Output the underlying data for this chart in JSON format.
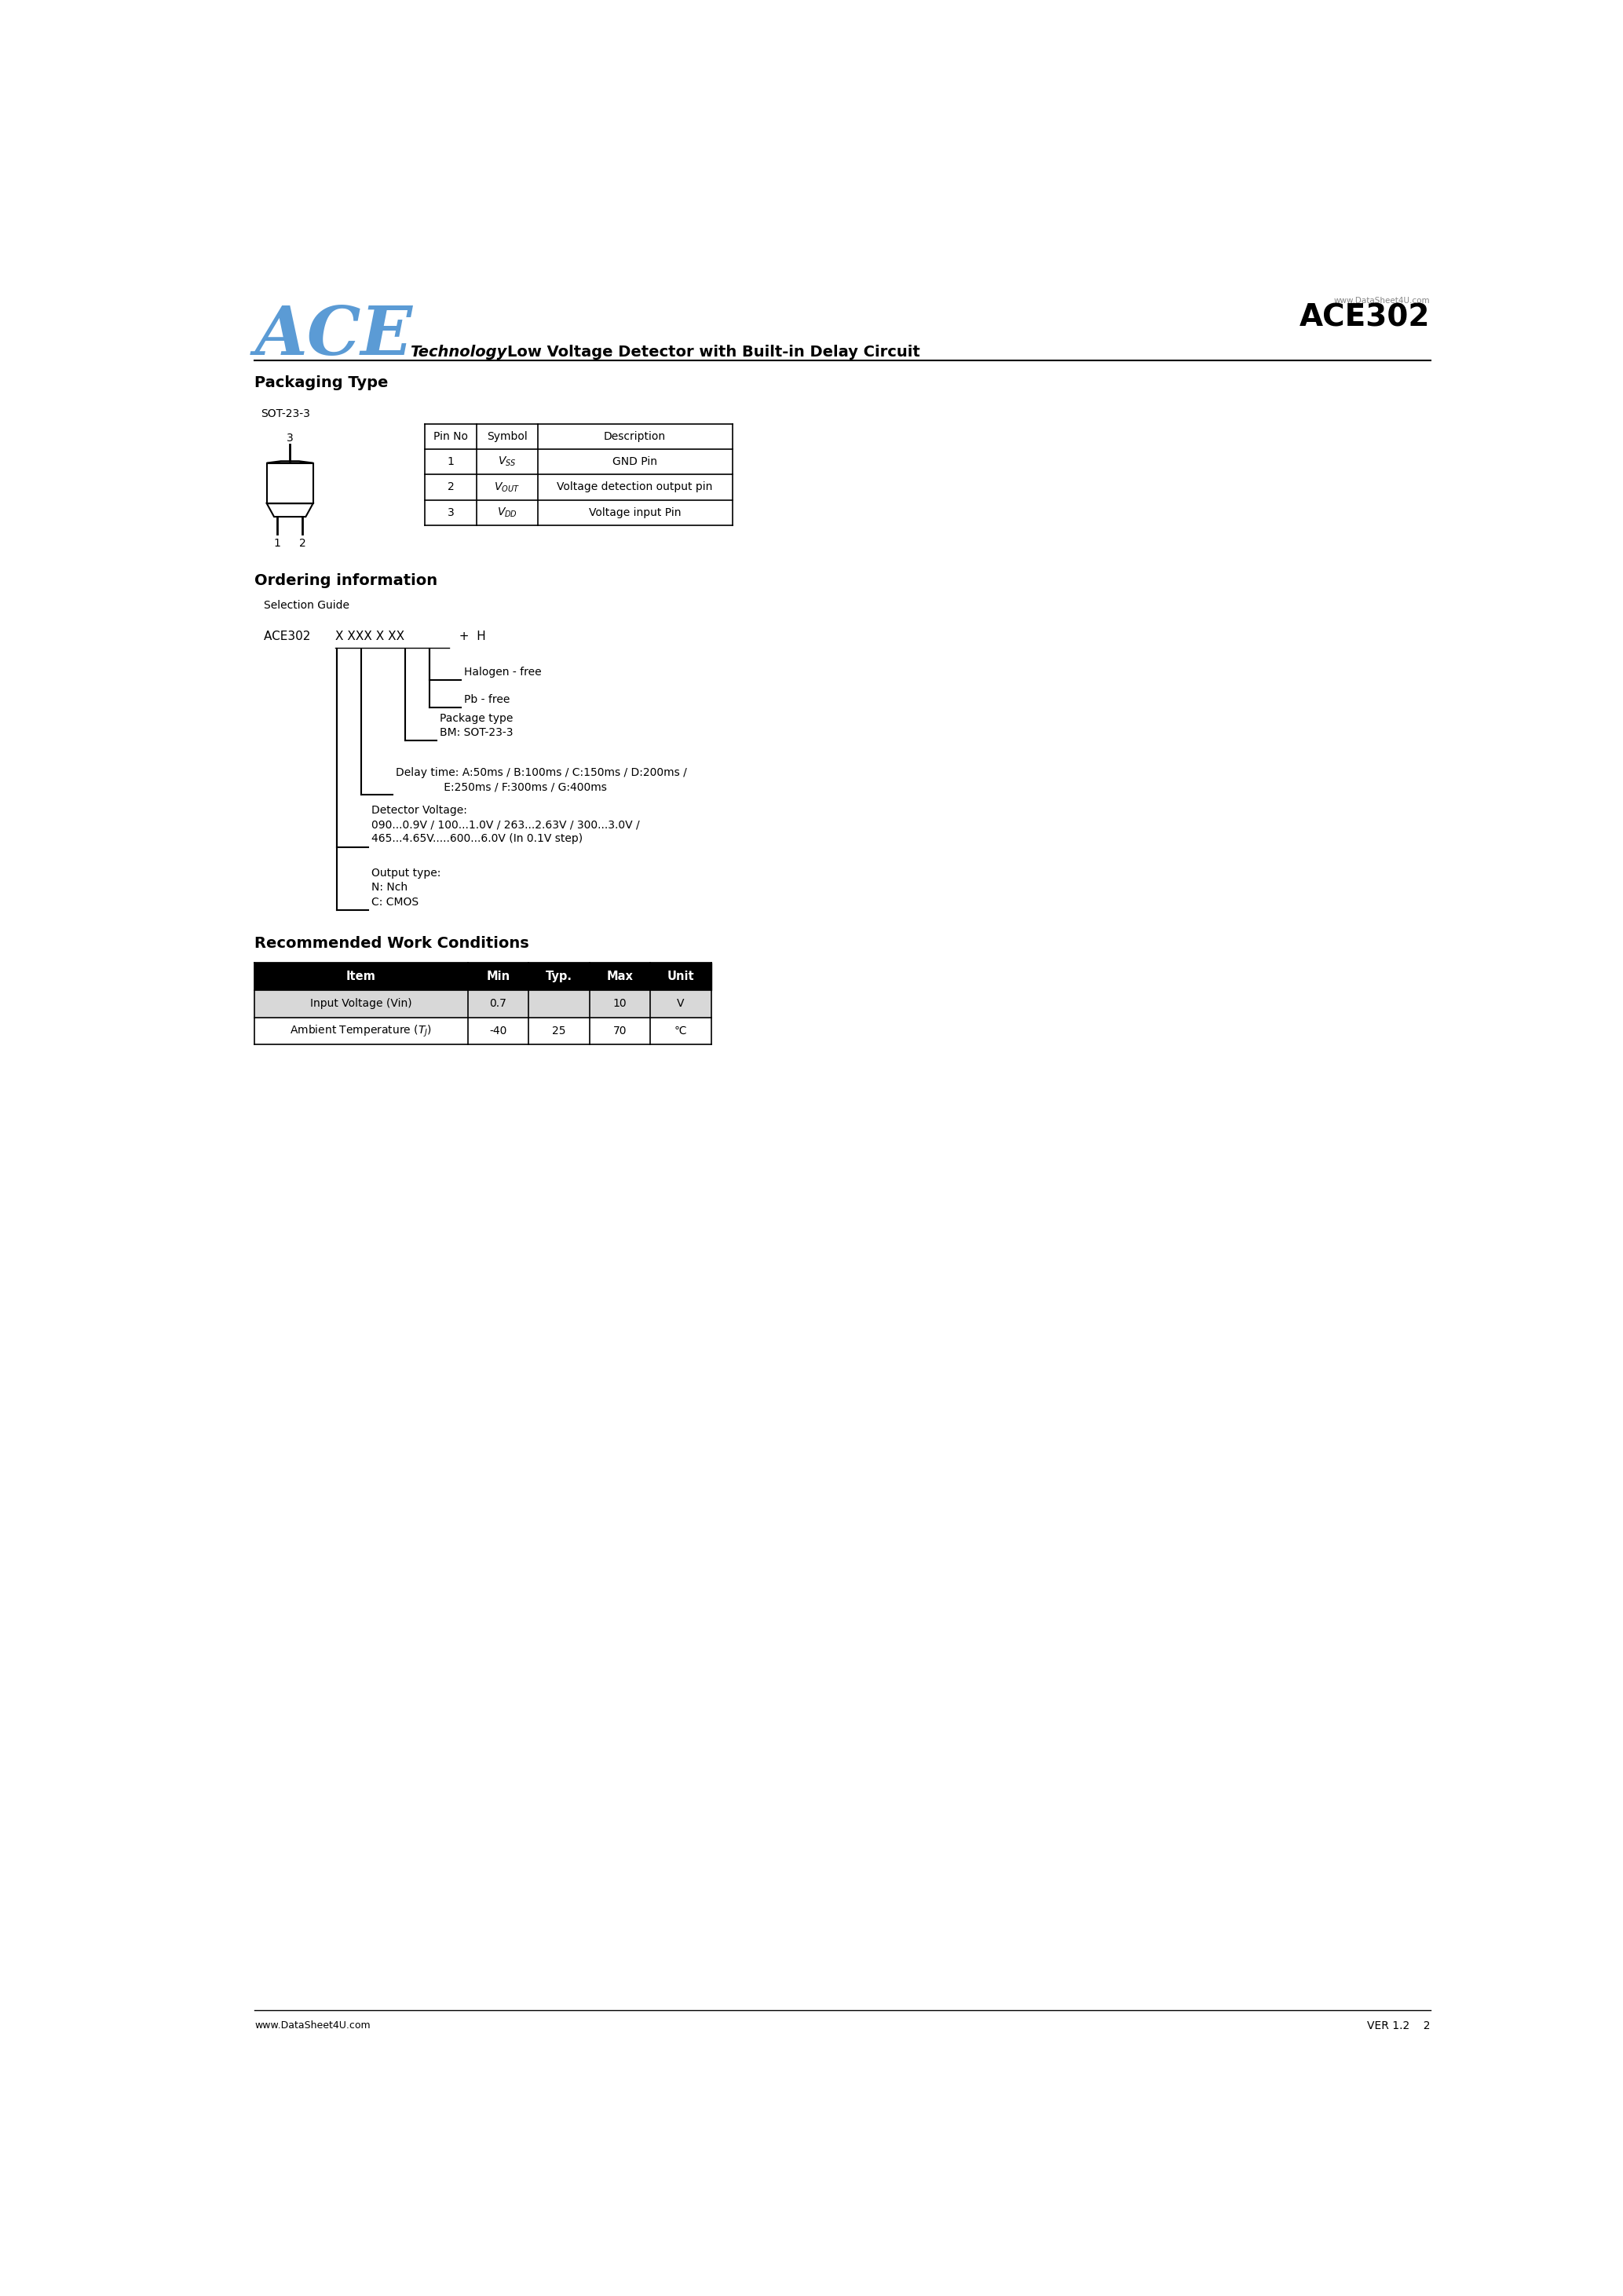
{
  "page_width": 20.67,
  "page_height": 29.24,
  "bg_color": "#ffffff",
  "ace_logo_color": "#5b9bd5",
  "title": "ACE302",
  "subtitle": "Low Voltage Detector with Built-in Delay Circuit",
  "technology_label": "Technology",
  "watermark": "www.DataSheet4U.com",
  "footer_watermark": "www.DataSheet4U.com",
  "version": "VER 1.2    2",
  "section1_title": "Packaging Type",
  "sot_label": "SOT-23-3",
  "pin_table_headers": [
    "Pin No",
    "Symbol",
    "Description"
  ],
  "pin_table_rows": [
    [
      "1",
      "V_SS",
      "GND Pin"
    ],
    [
      "2",
      "V_OUT",
      "Voltage detection output pin"
    ],
    [
      "3",
      "V_DD",
      "Voltage input Pin"
    ]
  ],
  "section2_title": "Ordering information",
  "selection_guide": "Selection Guide",
  "section3_title": "Recommended Work Conditions",
  "work_table_headers": [
    "Item",
    "Min",
    "Typ.",
    "Max",
    "Unit"
  ],
  "work_table_rows": [
    [
      "Input Voltage (Vin)",
      "0.7",
      "",
      "10",
      "V"
    ],
    [
      "Ambient Temperature (T_J)",
      "-40",
      "25",
      "70",
      "℃"
    ]
  ]
}
